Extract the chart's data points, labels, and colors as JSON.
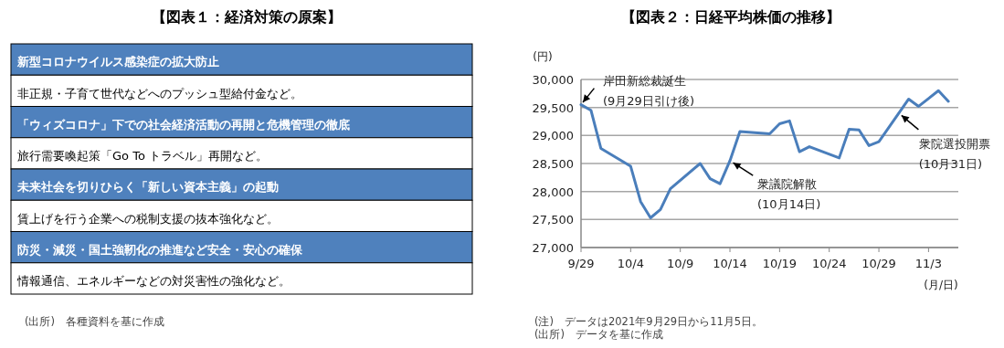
{
  "chart_data": [
    {
      "type": "other",
      "title": "【図表１：経済対策の原案】",
      "annotations": [
        "新型コロナウイルス感染症の拡大防止",
        "非正規・子育て世代などへのプッシュ型給付金など。",
        "「ウィズコロナ」下での社会経済活動の再開と危機管理の徹底",
        "旅行需要喚起策「Go To トラベル」再開など。",
        "未来社会を切りひらく「新しい資本主義」の起動",
        "賃上げを行う企業への税制支援の抜本強化など。",
        "防災・減災・国土強靭化の推進など安全・安心の確保",
        "情報通信、エネルギーなどの対災害性の強化など。",
        "(出所)　各種資料を基に作成"
      ]
    },
    {
      "type": "line",
      "title": "【図表２：日経平均株価の推移】",
      "ylabel": "(円)",
      "xlabel": "(月/日)",
      "color": "#4a7ebb",
      "grid": "y",
      "x": [
        "2021-09-29",
        "2021-09-30",
        "2021-10-01",
        "2021-10-04",
        "2021-10-05",
        "2021-10-06",
        "2021-10-07",
        "2021-10-08",
        "2021-10-11",
        "2021-10-12",
        "2021-10-13",
        "2021-10-14",
        "2021-10-15",
        "2021-10-18",
        "2021-10-19",
        "2021-10-20",
        "2021-10-21",
        "2021-10-22",
        "2021-10-25",
        "2021-10-26",
        "2021-10-27",
        "2021-10-28",
        "2021-10-29",
        "2021-11-01",
        "2021-11-02",
        "2021-11-04",
        "2021-11-05"
      ],
      "values": [
        29550,
        29450,
        28770,
        28450,
        27820,
        27530,
        27680,
        28050,
        28500,
        28230,
        28140,
        28550,
        29070,
        29030,
        29210,
        29260,
        28710,
        28800,
        28600,
        29110,
        29100,
        28820,
        28890,
        29650,
        29520,
        29800,
        29610
      ],
      "xlim": [
        "2021-09-29",
        "2021-11-06"
      ],
      "xticks": [
        {
          "value": "2021-09-29",
          "label": "9/29"
        },
        {
          "value": "2021-10-04",
          "label": "10/4"
        },
        {
          "value": "2021-10-09",
          "label": "10/9"
        },
        {
          "value": "2021-10-14",
          "label": "10/14"
        },
        {
          "value": "2021-10-19",
          "label": "10/19"
        },
        {
          "value": "2021-10-24",
          "label": "10/24"
        },
        {
          "value": "2021-10-29",
          "label": "10/29"
        },
        {
          "value": "2021-11-03",
          "label": "11/3"
        }
      ],
      "ylim": [
        27000,
        30000
      ],
      "yticks": [
        {
          "value": 27000,
          "label": "27,000"
        },
        {
          "value": 27500,
          "label": "27,500"
        },
        {
          "value": 28000,
          "label": "28,000"
        },
        {
          "value": 28500,
          "label": "28,500"
        },
        {
          "value": 29000,
          "label": "29,000"
        },
        {
          "value": 29500,
          "label": "29,500"
        },
        {
          "value": 30000,
          "label": "30,000"
        }
      ],
      "annotations": [
        {
          "text": "岸田新総裁誕生\n(9月29日引け後)",
          "x": "2021-09-29",
          "y": 29550
        },
        {
          "text": "衆議院解散\n(10月14日)",
          "x": "2021-10-14",
          "y": 28550
        },
        {
          "text": "衆院選投開票\n(10月31日)",
          "x": "2021-10-31",
          "y": 29400
        },
        "(注)　データは2021年9月29日から11月5日。",
        "(出所)　データを基に作成"
      ]
    }
  ]
}
